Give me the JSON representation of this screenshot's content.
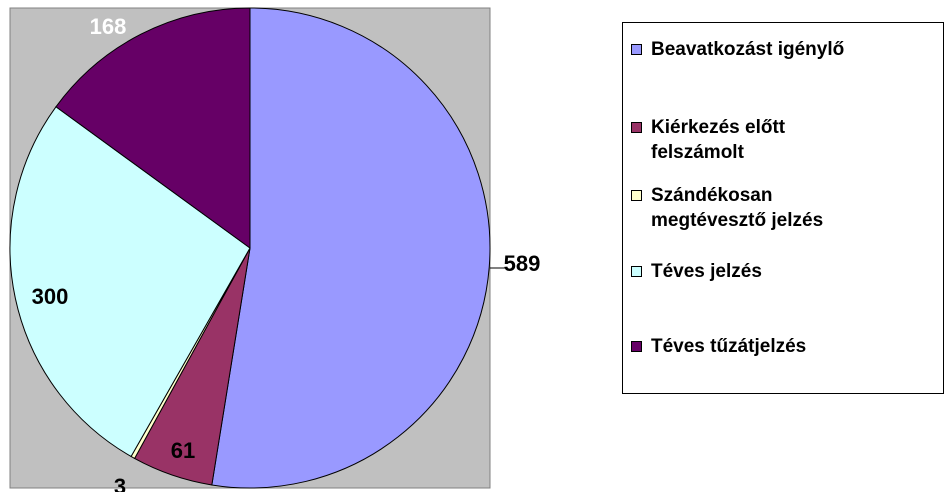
{
  "chart_data": {
    "type": "pie",
    "categories": [
      "Beavatkozást igénylő",
      "Kiérkezés előtt felszámolt",
      "Szándékosan megtévesztő jelzés",
      "Téves jelzés",
      "Téves tűzátjelzés"
    ],
    "values": [
      589,
      61,
      3,
      300,
      168
    ],
    "colors": [
      "#9999ff",
      "#993366",
      "#ffffcc",
      "#ccffff",
      "#660066"
    ],
    "legend": "right"
  }
}
